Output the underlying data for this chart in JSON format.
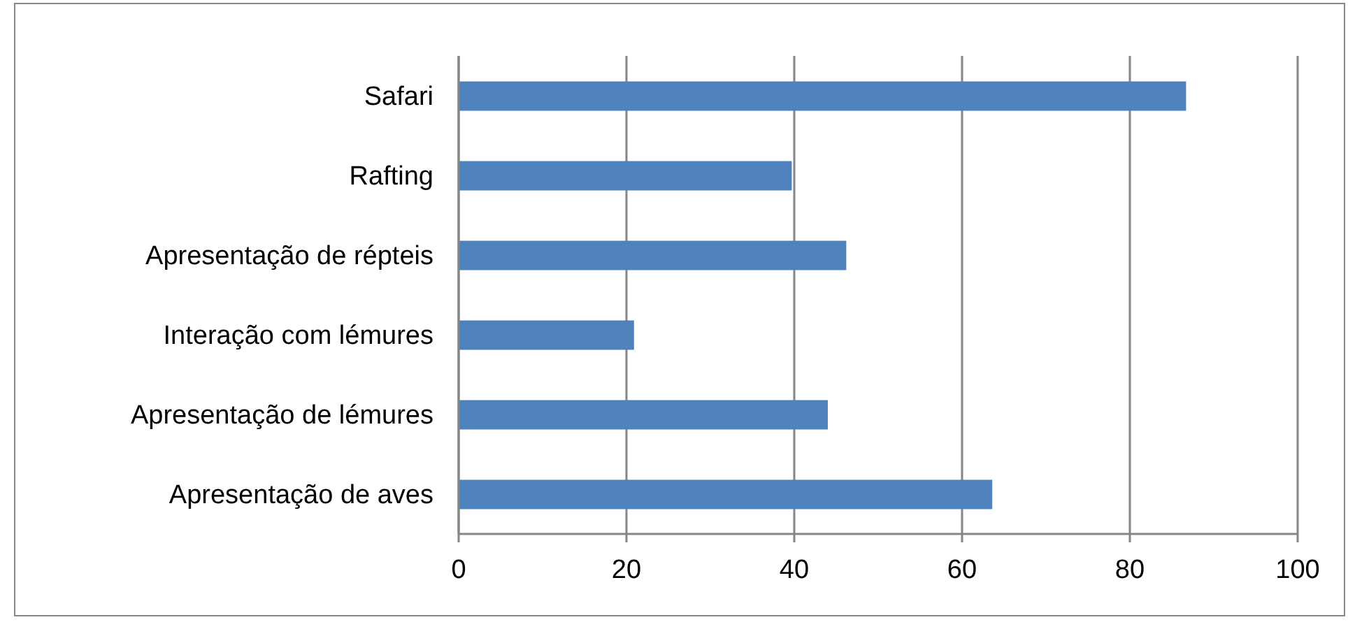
{
  "chart_data": {
    "type": "bar",
    "orientation": "horizontal",
    "categories": [
      "Safari",
      "Rafting",
      "Apresentação de répteis",
      "Interação com lémures",
      "Apresentação de lémures",
      "Apresentação de aves"
    ],
    "values": [
      86.7,
      39.7,
      46.2,
      20.9,
      44.0,
      63.6
    ],
    "color": "#4f81bd",
    "xlim": [
      0,
      100
    ],
    "xticks": [
      0,
      20,
      40,
      60,
      80,
      100
    ],
    "grid": "x",
    "legend": false
  }
}
